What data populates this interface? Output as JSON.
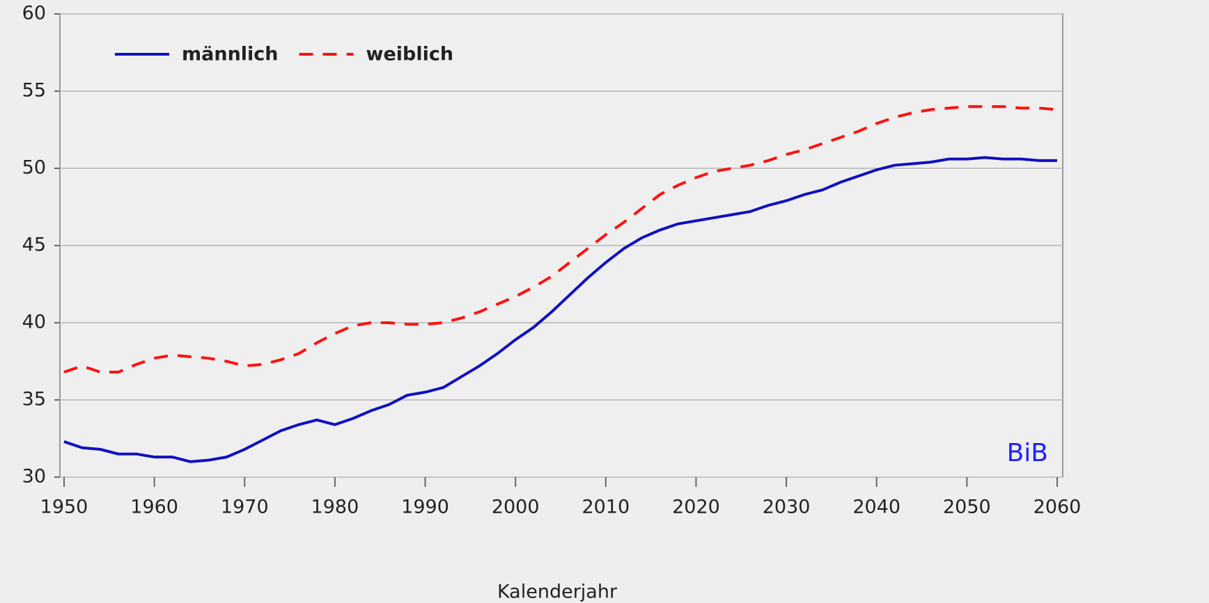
{
  "chart_data": {
    "type": "line",
    "x_label": "Kalenderjahr",
    "annotation": "BiB",
    "x": [
      1950,
      1952,
      1954,
      1956,
      1958,
      1960,
      1962,
      1964,
      1966,
      1968,
      1970,
      1972,
      1974,
      1976,
      1978,
      1980,
      1982,
      1984,
      1986,
      1988,
      1990,
      1992,
      1994,
      1996,
      1998,
      2000,
      2002,
      2004,
      2006,
      2008,
      2010,
      2012,
      2014,
      2016,
      2018,
      2020,
      2022,
      2024,
      2026,
      2028,
      2030,
      2032,
      2034,
      2036,
      2038,
      2040,
      2042,
      2044,
      2046,
      2048,
      2050,
      2052,
      2054,
      2056,
      2058,
      2060
    ],
    "series": [
      {
        "name": "männlich",
        "color": "#1010c0",
        "dash": false,
        "values": [
          32.3,
          31.9,
          31.8,
          31.5,
          31.5,
          31.3,
          31.3,
          31.0,
          31.1,
          31.3,
          31.8,
          32.4,
          33.0,
          33.4,
          33.7,
          33.4,
          33.8,
          34.3,
          34.7,
          35.3,
          35.5,
          35.8,
          36.5,
          37.2,
          38.0,
          38.9,
          39.7,
          40.7,
          41.8,
          42.9,
          43.9,
          44.8,
          45.5,
          46.0,
          46.4,
          46.6,
          46.8,
          47.0,
          47.2,
          47.6,
          47.9,
          48.3,
          48.6,
          49.1,
          49.5,
          49.9,
          50.2,
          50.3,
          50.4,
          50.6,
          50.6,
          50.7,
          50.6,
          50.6,
          50.5,
          50.5
        ]
      },
      {
        "name": "weiblich",
        "color": "#ff1010",
        "dash": true,
        "values": [
          36.8,
          37.2,
          36.8,
          36.8,
          37.3,
          37.7,
          37.9,
          37.8,
          37.7,
          37.5,
          37.2,
          37.3,
          37.6,
          38.0,
          38.7,
          39.3,
          39.8,
          40.0,
          40.0,
          39.9,
          39.9,
          40.0,
          40.3,
          40.7,
          41.2,
          41.7,
          42.3,
          43.0,
          43.9,
          44.8,
          45.7,
          46.5,
          47.4,
          48.3,
          48.9,
          49.4,
          49.8,
          50.0,
          50.2,
          50.5,
          50.9,
          51.2,
          51.6,
          52.0,
          52.4,
          52.9,
          53.3,
          53.6,
          53.8,
          53.9,
          54.0,
          54.0,
          54.0,
          53.9,
          53.9,
          53.8
        ]
      }
    ],
    "xlim": [
      1950,
      2060
    ],
    "xticks": [
      1950,
      1960,
      1970,
      1980,
      1990,
      2000,
      2010,
      2020,
      2030,
      2040,
      2050,
      2060
    ],
    "ylim": [
      30,
      60
    ],
    "yticks": [
      30,
      35,
      40,
      45,
      50,
      55,
      60
    ],
    "grid": true,
    "legend": "top-left"
  }
}
